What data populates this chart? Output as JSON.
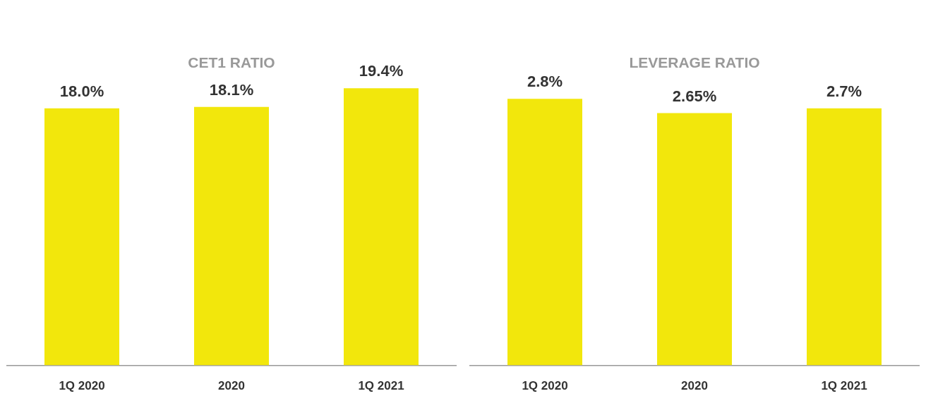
{
  "chart_data": [
    {
      "type": "bar",
      "title": "CET1 RATIO",
      "categories": [
        "1Q 2020",
        "2020",
        "1Q 2021"
      ],
      "values": [
        18.0,
        18.1,
        19.4
      ],
      "value_labels": [
        "18.0%",
        "18.1%",
        "19.4%"
      ],
      "color": "#f2e70c",
      "grid": false,
      "legend": false,
      "tick_labels": "x"
    },
    {
      "type": "bar",
      "title": "LEVERAGE RATIO",
      "categories": [
        "1Q 2020",
        "2020",
        "1Q 2021"
      ],
      "values": [
        2.8,
        2.65,
        2.7
      ],
      "value_labels": [
        "2.8%",
        "2.65%",
        "2.7%"
      ],
      "color": "#f2e70c",
      "grid": false,
      "legend": false,
      "tick_labels": "x"
    }
  ]
}
